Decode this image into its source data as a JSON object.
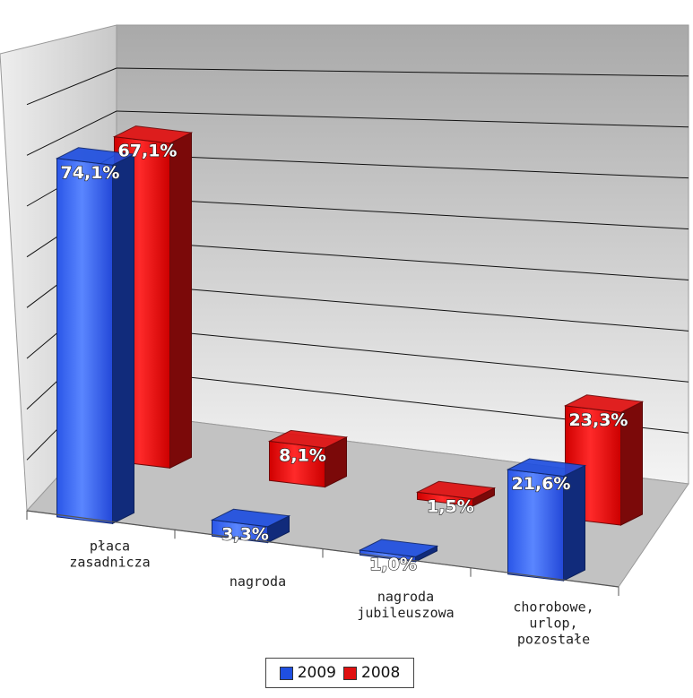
{
  "chart_data": {
    "type": "bar",
    "style": "3d-clustered-column",
    "categories": [
      "płaca\nzasadnicza",
      "nagroda",
      "nagroda\njubileuszowa",
      "chorobowe,\nurlop,\npozostałe"
    ],
    "series": [
      {
        "name": "2009",
        "color": "#1f4fe0",
        "values": [
          74.1,
          3.3,
          1.0,
          21.6
        ],
        "labels": [
          "74,1%",
          "3,3%",
          "1,0%",
          "21,6%"
        ]
      },
      {
        "name": "2008",
        "color": "#e01010",
        "values": [
          67.1,
          8.1,
          1.5,
          23.3
        ],
        "labels": [
          "67,1%",
          "8,1%",
          "1,5%",
          "23,3%"
        ]
      }
    ],
    "ylim": [
      0,
      80
    ],
    "grid": true,
    "legend": "bottom"
  }
}
